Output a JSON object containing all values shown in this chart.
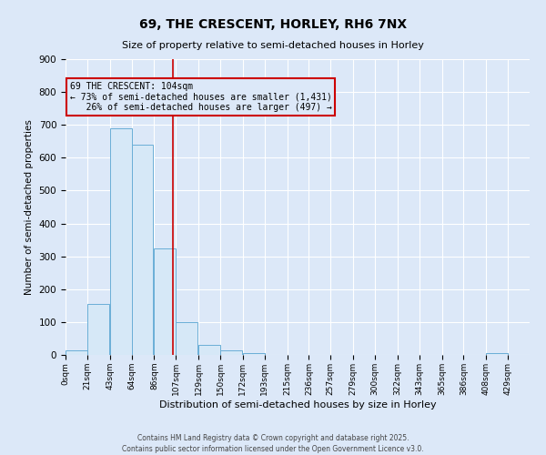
{
  "title": "69, THE CRESCENT, HORLEY, RH6 7NX",
  "subtitle": "Size of property relative to semi-detached houses in Horley",
  "xlabel": "Distribution of semi-detached houses by size in Horley",
  "ylabel": "Number of semi-detached properties",
  "bin_labels": [
    "0sqm",
    "21sqm",
    "43sqm",
    "64sqm",
    "86sqm",
    "107sqm",
    "129sqm",
    "150sqm",
    "172sqm",
    "193sqm",
    "215sqm",
    "236sqm",
    "257sqm",
    "279sqm",
    "300sqm",
    "322sqm",
    "343sqm",
    "365sqm",
    "386sqm",
    "408sqm",
    "429sqm"
  ],
  "bin_edges": [
    0,
    21,
    43,
    64,
    86,
    107,
    129,
    150,
    172,
    193,
    215,
    236,
    257,
    279,
    300,
    322,
    343,
    365,
    386,
    408,
    429
  ],
  "bar_heights": [
    15,
    155,
    690,
    640,
    325,
    100,
    30,
    15,
    5,
    0,
    0,
    0,
    0,
    0,
    0,
    0,
    0,
    0,
    0,
    5
  ],
  "bar_color": "#d6e8f7",
  "bar_edge_color": "#6aaed6",
  "property_value": 104,
  "vline_color": "#cc0000",
  "annotation_line1": "69 THE CRESCENT: 104sqm",
  "annotation_line2": "← 73% of semi-detached houses are smaller (1,431)",
  "annotation_line3": "   26% of semi-detached houses are larger (497) →",
  "annotation_box_edge_color": "#cc0000",
  "ylim": [
    0,
    900
  ],
  "yticks": [
    0,
    100,
    200,
    300,
    400,
    500,
    600,
    700,
    800,
    900
  ],
  "background_color": "#dce8f8",
  "grid_color": "#ffffff",
  "footer_line1": "Contains HM Land Registry data © Crown copyright and database right 2025.",
  "footer_line2": "Contains public sector information licensed under the Open Government Licence v3.0."
}
